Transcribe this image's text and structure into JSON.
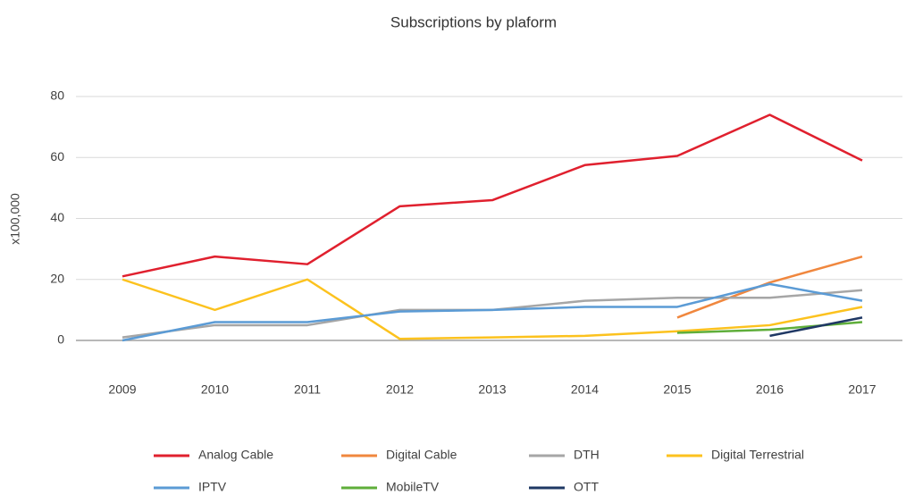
{
  "chart_data": {
    "type": "line",
    "title": "Subscriptions by plaform",
    "y_label": "x100,000",
    "categories": [
      "2009",
      "2010",
      "2011",
      "2012",
      "2013",
      "2014",
      "2015",
      "2016",
      "2017"
    ],
    "series": [
      {
        "name": "Analog Cable",
        "color": "#e0202e",
        "values": [
          21,
          27.5,
          25,
          44,
          46,
          57.5,
          60.5,
          74,
          59
        ]
      },
      {
        "name": "Digital Cable",
        "color": "#f0873e",
        "values": [
          null,
          null,
          null,
          null,
          null,
          null,
          7.5,
          19,
          27.5
        ]
      },
      {
        "name": "DTH",
        "color": "#a6a6a6",
        "values": [
          1,
          5,
          5,
          10,
          10,
          13,
          14,
          14,
          16.5
        ]
      },
      {
        "name": "Digital Terrestrial",
        "color": "#fcc21e",
        "values": [
          20,
          10,
          20,
          0.5,
          1,
          1.5,
          3,
          5,
          11
        ]
      },
      {
        "name": "IPTV",
        "color": "#5b9bd5",
        "values": [
          0,
          6,
          6,
          9.5,
          10,
          11,
          11,
          18.5,
          13
        ]
      },
      {
        "name": "MobileTV",
        "color": "#5fae3a",
        "values": [
          null,
          null,
          null,
          null,
          null,
          null,
          2.5,
          3.5,
          6
        ]
      },
      {
        "name": "OTT",
        "color": "#1f3864",
        "values": [
          null,
          null,
          null,
          null,
          null,
          null,
          null,
          1.5,
          7.5
        ]
      }
    ],
    "ylim": [
      0,
      80
    ],
    "yticks": [
      0,
      20,
      40,
      60,
      80
    ],
    "grid": true,
    "legend": "bottom"
  }
}
